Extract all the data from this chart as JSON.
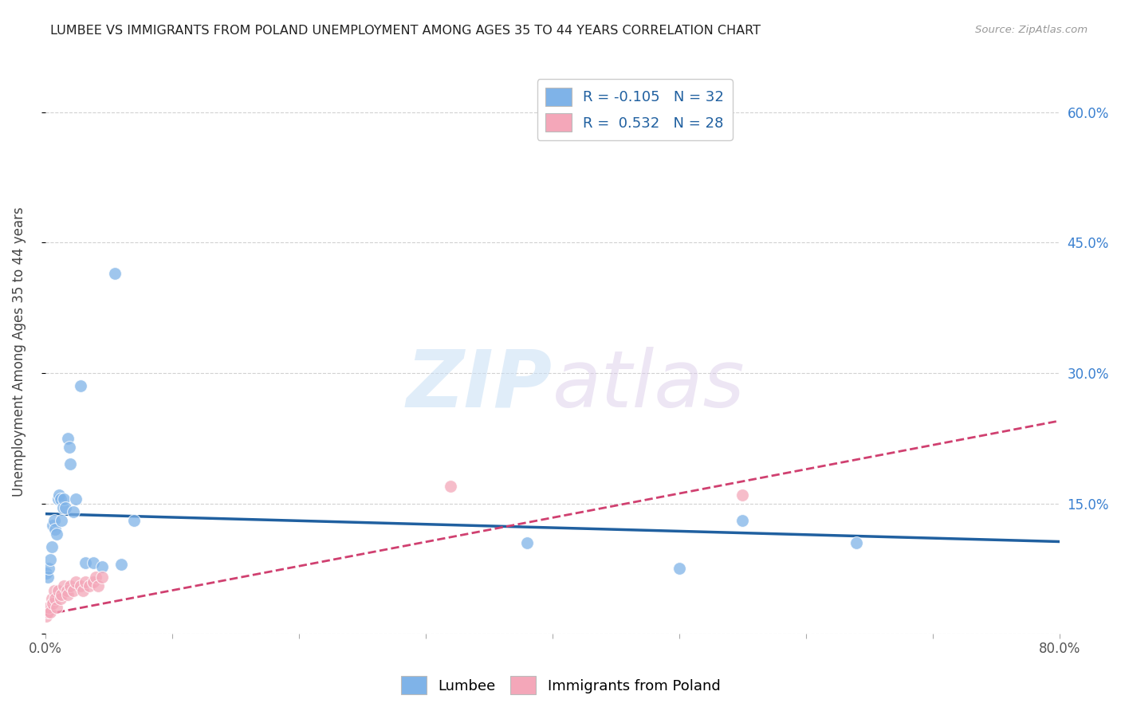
{
  "title": "LUMBEE VS IMMIGRANTS FROM POLAND UNEMPLOYMENT AMONG AGES 35 TO 44 YEARS CORRELATION CHART",
  "source": "Source: ZipAtlas.com",
  "ylabel": "Unemployment Among Ages 35 to 44 years",
  "xlim": [
    0.0,
    0.8
  ],
  "ylim": [
    0.0,
    0.65
  ],
  "xticks": [
    0.0,
    0.1,
    0.2,
    0.3,
    0.4,
    0.5,
    0.6,
    0.7,
    0.8
  ],
  "xticklabels": [
    "0.0%",
    "",
    "",
    "",
    "",
    "",
    "",
    "",
    "80.0%"
  ],
  "ytick_vals": [
    0.0,
    0.15,
    0.3,
    0.45,
    0.6
  ],
  "yticklabels_right": [
    "",
    "15.0%",
    "30.0%",
    "45.0%",
    "60.0%"
  ],
  "lumbee_color": "#7fb3e8",
  "poland_color": "#f4a7b9",
  "lumbee_line_color": "#2060a0",
  "poland_line_color": "#d04070",
  "legend_R_lumbee": "-0.105",
  "legend_N_lumbee": "32",
  "legend_R_poland": "0.532",
  "legend_N_poland": "28",
  "lumbee_x": [
    0.001,
    0.002,
    0.003,
    0.004,
    0.005,
    0.006,
    0.007,
    0.008,
    0.009,
    0.01,
    0.011,
    0.012,
    0.013,
    0.014,
    0.015,
    0.016,
    0.018,
    0.019,
    0.02,
    0.022,
    0.024,
    0.028,
    0.032,
    0.038,
    0.045,
    0.055,
    0.06,
    0.07,
    0.38,
    0.5,
    0.55,
    0.64
  ],
  "lumbee_y": [
    0.07,
    0.065,
    0.075,
    0.085,
    0.1,
    0.125,
    0.13,
    0.12,
    0.115,
    0.155,
    0.16,
    0.155,
    0.13,
    0.145,
    0.155,
    0.145,
    0.225,
    0.215,
    0.195,
    0.14,
    0.155,
    0.285,
    0.082,
    0.082,
    0.077,
    0.415,
    0.08,
    0.13,
    0.105,
    0.075,
    0.13,
    0.105
  ],
  "poland_x": [
    0.001,
    0.002,
    0.003,
    0.004,
    0.005,
    0.006,
    0.007,
    0.008,
    0.009,
    0.01,
    0.012,
    0.013,
    0.015,
    0.017,
    0.018,
    0.02,
    0.022,
    0.024,
    0.028,
    0.03,
    0.032,
    0.035,
    0.038,
    0.04,
    0.042,
    0.045,
    0.32,
    0.55
  ],
  "poland_y": [
    0.02,
    0.025,
    0.03,
    0.025,
    0.04,
    0.035,
    0.05,
    0.04,
    0.03,
    0.05,
    0.04,
    0.045,
    0.055,
    0.05,
    0.045,
    0.055,
    0.05,
    0.06,
    0.055,
    0.05,
    0.06,
    0.055,
    0.06,
    0.065,
    0.055,
    0.065,
    0.17,
    0.16
  ],
  "lumbee_line_x0": 0.0,
  "lumbee_line_y0": 0.138,
  "lumbee_line_x1": 0.8,
  "lumbee_line_y1": 0.106,
  "poland_line_x0": 0.0,
  "poland_line_y0": 0.022,
  "poland_line_x1": 0.8,
  "poland_line_y1": 0.245,
  "watermark_zip": "ZIP",
  "watermark_atlas": "atlas",
  "background_color": "#ffffff",
  "grid_color": "#cccccc"
}
